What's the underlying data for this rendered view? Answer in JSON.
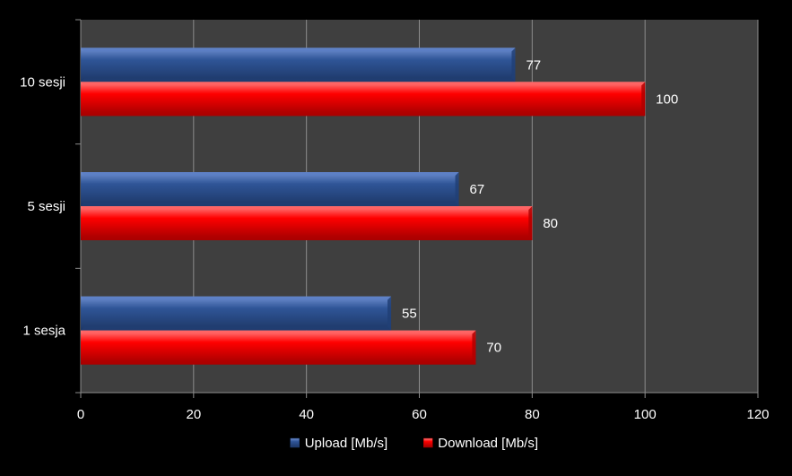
{
  "colors": {
    "chart_background": "#000000",
    "plot_background": "#3f3f3f",
    "gridline": "#8c8c8c",
    "axis": "#8c8c8c",
    "text": "#ffffff",
    "upload": "#2f5597",
    "download": "#ff0000"
  },
  "chart_data": {
    "type": "bar",
    "orientation": "horizontal",
    "categories": [
      "10 sesji",
      "5 sesji",
      "1 sesja"
    ],
    "series": [
      {
        "name": "Upload [Mb/s]",
        "values": [
          77,
          67,
          55
        ],
        "color": "#2f5597",
        "data_labels": [
          "77",
          "67",
          "55"
        ]
      },
      {
        "name": "Download [Mb/s]",
        "values": [
          100,
          80,
          70
        ],
        "color": "#ff0000",
        "data_labels": [
          "100",
          "80",
          "70"
        ]
      }
    ],
    "xlim": [
      0,
      120
    ],
    "x_ticks": [
      "0",
      "20",
      "40",
      "60",
      "80",
      "100",
      "120"
    ],
    "grid": true,
    "legend_position": "bottom",
    "title": "",
    "xlabel": "",
    "ylabel": ""
  }
}
